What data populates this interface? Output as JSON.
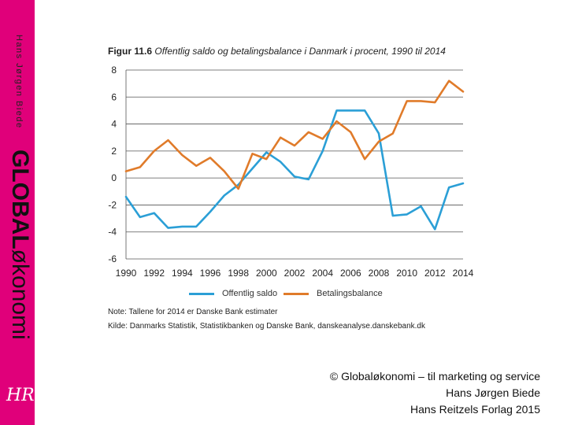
{
  "sidebar": {
    "author": "Hans Jørgen Biede",
    "brand_bold": "GLOBAL",
    "brand_light": "økonomi",
    "logo": "HR"
  },
  "figure": {
    "number": "Figur 11.6",
    "title": "Offentlig saldo og betalingsbalance i Danmark i procent, 1990 til 2014"
  },
  "notes": {
    "note": "Note: Tallene for 2014 er Danske Bank estimater",
    "source": "Kilde: Danmarks Statistik, Statistikbanken og Danske Bank, danskeanalyse.danskebank.dk"
  },
  "copyright": {
    "line1": "© Globaløkonomi – til marketing og service",
    "line2": "Hans Jørgen Biede",
    "line3": "Hans Reitzels Forlag 2015"
  },
  "chart_data": {
    "type": "line",
    "title": "Offentlig saldo og betalingsbalance i Danmark i procent, 1990 til 2014",
    "xlabel": "",
    "ylabel": "",
    "x": [
      1990,
      1991,
      1992,
      1993,
      1994,
      1995,
      1996,
      1997,
      1998,
      1999,
      2000,
      2001,
      2002,
      2003,
      2004,
      2005,
      2006,
      2007,
      2008,
      2009,
      2010,
      2011,
      2012,
      2013,
      2014
    ],
    "xlim": [
      1990,
      2014
    ],
    "ylim": [
      -6,
      8
    ],
    "xticks": [
      "1990",
      "1992",
      "1994",
      "1996",
      "1998",
      "2000",
      "2002",
      "2004",
      "2006",
      "2008",
      "2010",
      "2012",
      "2014"
    ],
    "yticks": [
      "8",
      "6",
      "4",
      "2",
      "0",
      "-2",
      "-4",
      "-6"
    ],
    "grid": "horizontal",
    "legend_position": "bottom",
    "series": [
      {
        "name": "Offentlig saldo",
        "color": "#2b9fd6",
        "values": [
          -1.4,
          -2.9,
          -2.6,
          -3.7,
          -3.6,
          -3.6,
          -2.5,
          -1.3,
          -0.5,
          0.7,
          1.9,
          1.2,
          0.1,
          -0.1,
          2.0,
          5.0,
          5.0,
          5.0,
          3.3,
          -2.8,
          -2.7,
          -2.1,
          -3.8,
          -0.7,
          -0.4
        ]
      },
      {
        "name": "Betalingsbalance",
        "color": "#e07b2a",
        "values": [
          0.5,
          0.8,
          2.0,
          2.8,
          1.7,
          0.9,
          1.5,
          0.5,
          -0.8,
          1.8,
          1.4,
          3.0,
          2.4,
          3.4,
          2.9,
          4.2,
          3.4,
          1.4,
          2.7,
          3.3,
          5.7,
          5.7,
          5.6,
          7.2,
          6.4
        ]
      }
    ]
  }
}
